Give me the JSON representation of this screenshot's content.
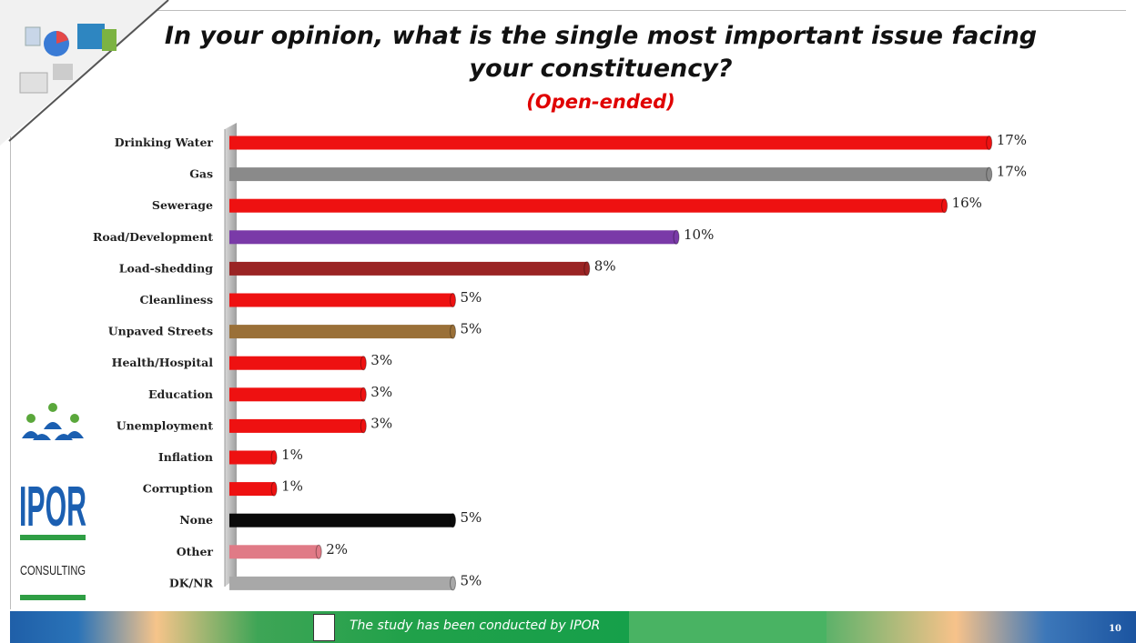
{
  "title": "In your opinion, what is the single most important issue facing your constituency?",
  "subtitle": "(Open-ended)",
  "footer": {
    "text": "The study has been conducted by IPOR",
    "page_number": "10"
  },
  "logo": {
    "name": "IPOR",
    "tagline": "CONSULTING"
  },
  "chart_data": {
    "type": "bar",
    "orientation": "horizontal",
    "categories": [
      "Drinking Water",
      "Gas",
      "Sewerage",
      "Road/Development",
      "Load-shedding",
      "Cleanliness",
      "Unpaved Streets",
      "Health/Hospital",
      "Education",
      "Unemployment",
      "Inflation",
      "Corruption",
      "None",
      "Other",
      "DK/NR"
    ],
    "values": [
      17,
      17,
      16,
      10,
      8,
      5,
      5,
      3,
      3,
      3,
      1,
      1,
      5,
      2,
      5
    ],
    "labels": [
      "17%",
      "17%",
      "16%",
      "10%",
      "8%",
      "5%",
      "5%",
      "3%",
      "3%",
      "3%",
      "1%",
      "1%",
      "5%",
      "2%",
      "5%"
    ],
    "colors": [
      "#ee1111",
      "#8a8a8a",
      "#ee1111",
      "#7a3aa8",
      "#9a2424",
      "#ee1111",
      "#9a7038",
      "#ee1111",
      "#ee1111",
      "#ee1111",
      "#ee1111",
      "#ee1111",
      "#0a0a0a",
      "#e07a86",
      "#a8a8a8"
    ],
    "unit": "%",
    "grid": false
  }
}
